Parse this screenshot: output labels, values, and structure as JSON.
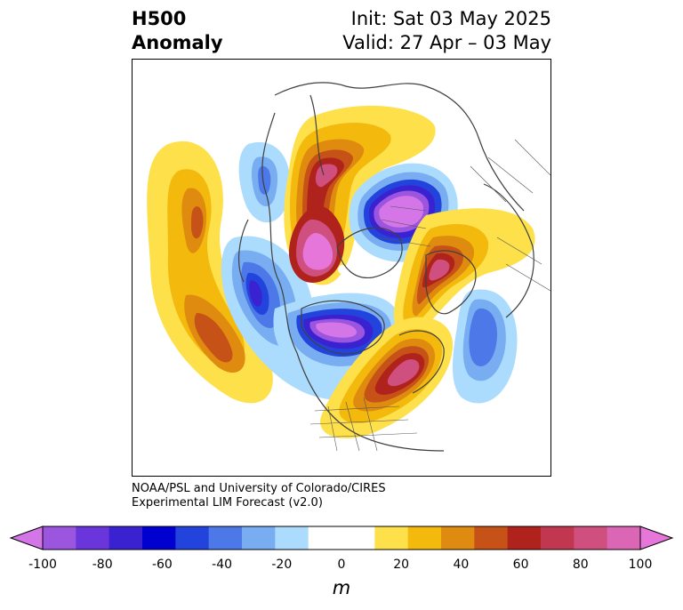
{
  "title": {
    "left_line1": "H500",
    "left_line2": "Anomaly",
    "right_line1": "Init: Sat 03 May 2025",
    "right_line2": "Valid: 27 Apr – 03 May"
  },
  "credit": {
    "line1": "NOAA/PSL and University of Colorado/CIRES",
    "line2": "Experimental LIM Forecast (v2.0)"
  },
  "colorbar": {
    "unit": "m",
    "ticks": [
      "-100",
      "-80",
      "-60",
      "-40",
      "-20",
      "0",
      "20",
      "40",
      "60",
      "80",
      "100"
    ],
    "colors": [
      "#d576e8",
      "#9b55df",
      "#6a36dc",
      "#3b22d1",
      "#0000d0",
      "#2344dc",
      "#4c78e8",
      "#79adf2",
      "#acdcfd",
      "#ffffff",
      "#ffffff",
      "#fde04a",
      "#f3b90c",
      "#df8b0f",
      "#c65217",
      "#b0221c",
      "#c13750",
      "#cf4f7f",
      "#db66b5",
      "#e776da"
    ]
  },
  "map": {
    "projection": "north-polar-stereographic",
    "features": [
      "coastlines",
      "country-borders",
      "us-state-borders",
      "anomaly-contours"
    ]
  }
}
